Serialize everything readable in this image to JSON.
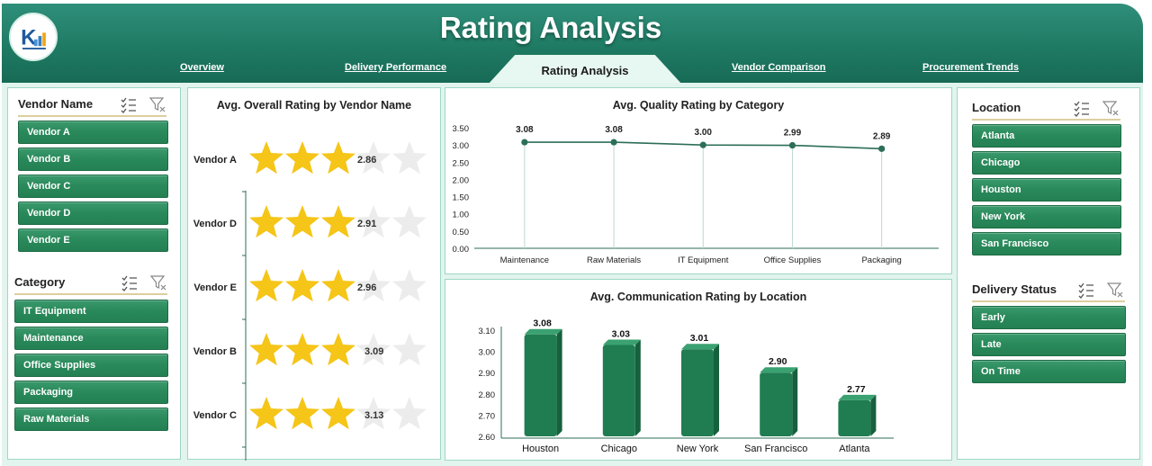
{
  "header": {
    "title": "Rating Analysis",
    "nav": [
      {
        "label": "Overview"
      },
      {
        "label": "Delivery Performance"
      },
      {
        "label": "Rating Analysis",
        "active": true
      },
      {
        "label": "Vendor Comparison"
      },
      {
        "label": "Procurement Trends"
      }
    ],
    "logo": {
      "icon": "company-logo-icon"
    }
  },
  "colors": {
    "header_green": "#1f7a63",
    "slicer_green": "#2a8a5b",
    "star_gold": "#f5c518",
    "star_empty": "#ececec",
    "line_green": "#2c6e58",
    "bar_green": "#1f7d51",
    "panel_border": "#9fd6c4",
    "content_bg": "#e2f4ee"
  },
  "slicers": {
    "vendor_name": {
      "title": "Vendor Name",
      "items": [
        "Vendor A",
        "Vendor B",
        "Vendor C",
        "Vendor D",
        "Vendor E"
      ]
    },
    "category": {
      "title": "Category",
      "items": [
        "IT Equipment",
        "Maintenance",
        "Office Supplies",
        "Packaging",
        "Raw Materials"
      ]
    },
    "location": {
      "title": "Location",
      "items": [
        "Atlanta",
        "Chicago",
        "Houston",
        "New York",
        "San Francisco"
      ]
    },
    "delivery_status": {
      "title": "Delivery Status",
      "items": [
        "Early",
        "Late",
        "On Time"
      ]
    },
    "icons": [
      "multi-select-icon",
      "clear-filter-icon"
    ]
  },
  "chart_data": [
    {
      "type": "bar",
      "title": "Avg. Overall Rating by Vendor Name",
      "style": "star-rating",
      "categories": [
        "Vendor A",
        "Vendor D",
        "Vendor E",
        "Vendor B",
        "Vendor C"
      ],
      "values": [
        2.86,
        2.91,
        2.96,
        3.09,
        3.13
      ],
      "max_stars": 5,
      "filled_stars_shown": 3
    },
    {
      "type": "line",
      "title": "Avg. Quality Rating by Category",
      "categories": [
        "Maintenance",
        "Raw Materials",
        "IT Equipment",
        "Office Supplies",
        "Packaging"
      ],
      "values": [
        3.08,
        3.08,
        3.0,
        2.99,
        2.89
      ],
      "value_labels": [
        "3.08",
        "3.08",
        "3.00",
        "2.99",
        "2.89"
      ],
      "y_ticks": [
        "3.50",
        "3.00",
        "2.50",
        "2.00",
        "1.50",
        "1.00",
        "0.50",
        "0.00"
      ],
      "ylim": [
        0,
        3.5
      ],
      "grid": false
    },
    {
      "type": "bar",
      "title": "Avg. Communication Rating by Location",
      "categories": [
        "Houston",
        "Chicago",
        "New York",
        "San Francisco",
        "Atlanta"
      ],
      "values": [
        3.08,
        3.03,
        3.01,
        2.9,
        2.77
      ],
      "value_labels": [
        "3.08",
        "3.03",
        "3.01",
        "2.90",
        "2.77"
      ],
      "y_ticks": [
        "3.10",
        "3.00",
        "2.90",
        "2.80",
        "2.70",
        "2.60"
      ],
      "ylim": [
        2.6,
        3.1
      ],
      "grid": false
    }
  ]
}
